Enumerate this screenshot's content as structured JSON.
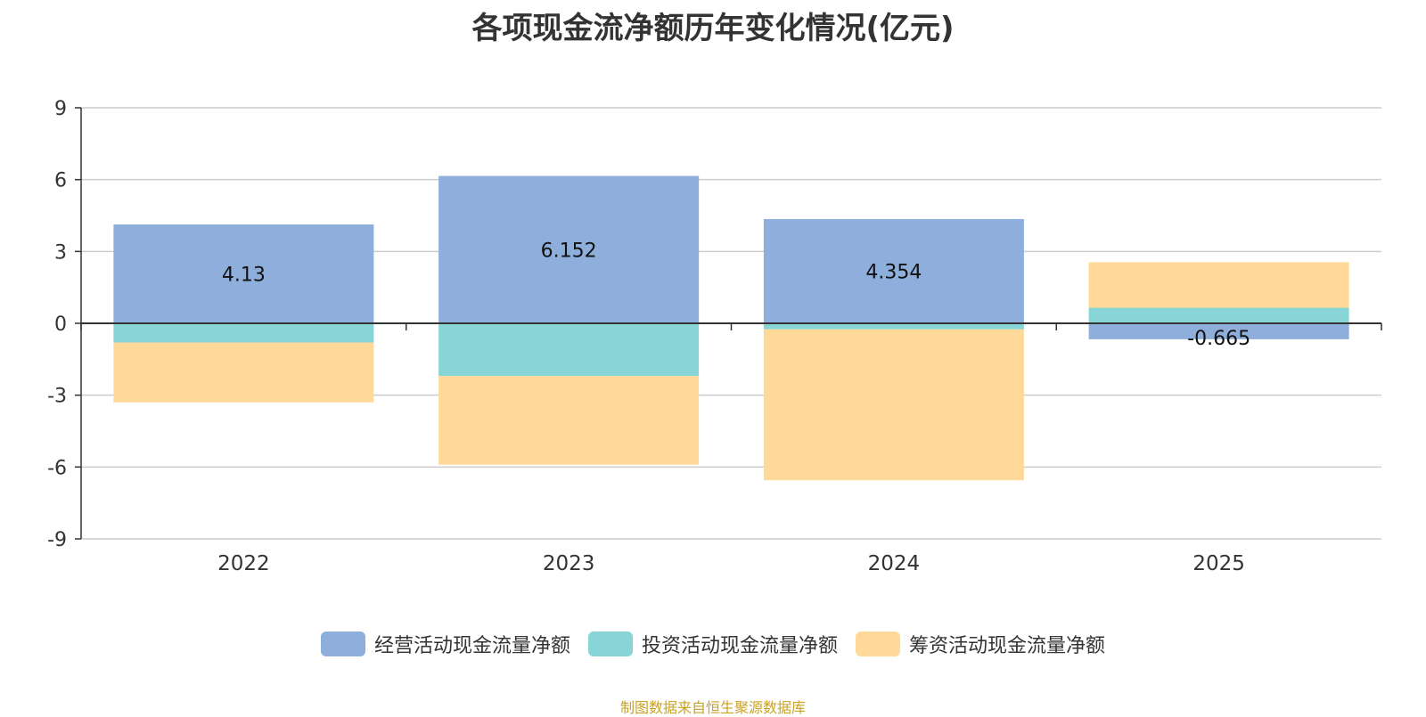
{
  "chart_data": {
    "type": "bar",
    "stacked": true,
    "title": "各项现金流净额历年变化情况(亿元)",
    "categories": [
      "2022",
      "2023",
      "2024",
      "2025"
    ],
    "series": [
      {
        "name": "经营活动现金流量净额",
        "color": "#8eaedb",
        "values": [
          4.13,
          6.152,
          4.354,
          -0.665
        ]
      },
      {
        "name": "投资活动现金流量净额",
        "color": "#88d5d7",
        "values": [
          -0.8,
          -2.2,
          -0.25,
          0.65
        ]
      },
      {
        "name": "筹资活动现金流量净额",
        "color": "#ffd999",
        "values": [
          -2.5,
          -3.7,
          -6.3,
          1.9
        ]
      }
    ],
    "data_labels": [
      "4.13",
      "6.152",
      "4.354",
      "-0.665"
    ],
    "ylim": [
      -9,
      9
    ],
    "yticks": [
      "9",
      "6",
      "3",
      "0",
      "-3",
      "-6",
      "-9"
    ],
    "ytick_values": [
      9,
      6,
      3,
      0,
      -3,
      -6,
      -9
    ],
    "grid": true,
    "legend_position": "bottom"
  },
  "source_note": "制图数据来自恒生聚源数据库"
}
